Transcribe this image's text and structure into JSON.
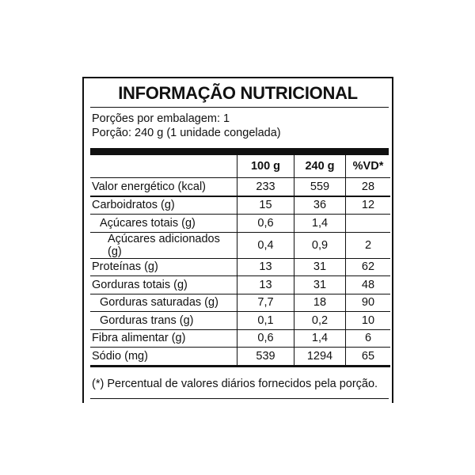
{
  "title": "INFORMAÇÃO NUTRICIONAL",
  "servings_per_package": "Porções por embalagem: 1",
  "serving_size": "Porção: 240 g (1 unidade congelada)",
  "columns": [
    "",
    "100 g",
    "240 g",
    "%VD*"
  ],
  "rows": [
    {
      "name": "Valor energético (kcal)",
      "per100": "233",
      "per240": "559",
      "vd": "28",
      "indent": 0
    },
    {
      "name": "Carboidratos (g)",
      "per100": "15",
      "per240": "36",
      "vd": "12",
      "indent": 0
    },
    {
      "name": "Açúcares totais (g)",
      "per100": "0,6",
      "per240": "1,4",
      "vd": "",
      "indent": 1
    },
    {
      "name": "Açúcares adicionados (g)",
      "per100": "0,4",
      "per240": "0,9",
      "vd": "2",
      "indent": 2
    },
    {
      "name": "Proteínas (g)",
      "per100": "13",
      "per240": "31",
      "vd": "62",
      "indent": 0
    },
    {
      "name": "Gorduras totais (g)",
      "per100": "13",
      "per240": "31",
      "vd": "48",
      "indent": 0
    },
    {
      "name": "Gorduras saturadas (g)",
      "per100": "7,7",
      "per240": "18",
      "vd": "90",
      "indent": 1
    },
    {
      "name": "Gorduras trans (g)",
      "per100": "0,1",
      "per240": "0,2",
      "vd": "10",
      "indent": 1
    },
    {
      "name": "Fibra alimentar (g)",
      "per100": "0,6",
      "per240": "1,4",
      "vd": "6",
      "indent": 0
    },
    {
      "name": "Sódio (mg)",
      "per100": "539",
      "per240": "1294",
      "vd": "65",
      "indent": 0
    }
  ],
  "footnote": "(*) Percentual de valores diários fornecidos pela porção."
}
